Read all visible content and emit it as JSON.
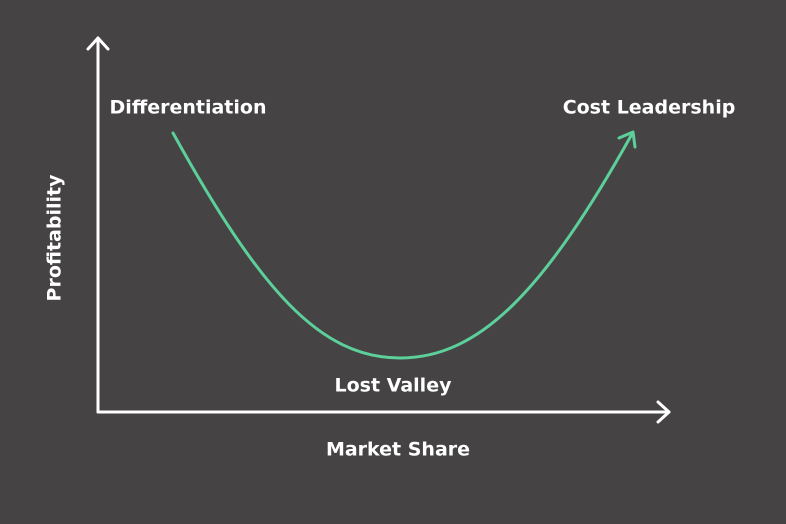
{
  "diagram": {
    "y_axis_label": "Profitability",
    "x_axis_label": "Market Share",
    "annotations": {
      "left": "Differentiation",
      "right": "Cost Leadership",
      "bottom": "Lost Valley"
    }
  }
}
